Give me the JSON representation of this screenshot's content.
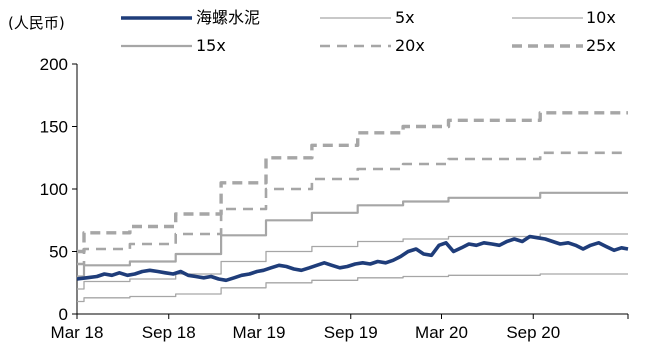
{
  "chart_data": {
    "type": "line",
    "unit_label": "(人民币)",
    "title": "",
    "xlabel": "",
    "ylabel": "",
    "ylim": [
      0,
      200
    ],
    "yticks": [
      0,
      50,
      100,
      150,
      200
    ],
    "x_range": [
      "2018-03-01",
      "2021-03-10"
    ],
    "xticks": [
      {
        "date": "2018-03-01",
        "label": "Mar 18"
      },
      {
        "date": "2018-09-01",
        "label": "Sep 18"
      },
      {
        "date": "2019-03-01",
        "label": "Mar 19"
      },
      {
        "date": "2019-09-01",
        "label": "Sep 19"
      },
      {
        "date": "2020-03-01",
        "label": "Mar 20"
      },
      {
        "date": "2020-09-01",
        "label": "Sep 20"
      }
    ],
    "grid": false,
    "legend_position": "top",
    "series": [
      {
        "name": "海螺水泥",
        "color": "#1f3d7a",
        "style": "solid-thick",
        "points": [
          [
            "2018-03-01",
            28
          ],
          [
            "2018-03-20",
            29
          ],
          [
            "2018-04-10",
            30
          ],
          [
            "2018-04-25",
            32
          ],
          [
            "2018-05-10",
            31
          ],
          [
            "2018-05-25",
            33
          ],
          [
            "2018-06-10",
            31
          ],
          [
            "2018-06-25",
            32
          ],
          [
            "2018-07-10",
            34
          ],
          [
            "2018-07-25",
            35
          ],
          [
            "2018-08-10",
            34
          ],
          [
            "2018-08-25",
            33
          ],
          [
            "2018-09-10",
            32
          ],
          [
            "2018-09-25",
            34
          ],
          [
            "2018-10-10",
            31
          ],
          [
            "2018-10-25",
            30
          ],
          [
            "2018-11-10",
            29
          ],
          [
            "2018-11-25",
            30
          ],
          [
            "2018-12-10",
            28
          ],
          [
            "2018-12-25",
            27
          ],
          [
            "2019-01-10",
            29
          ],
          [
            "2019-01-25",
            31
          ],
          [
            "2019-02-10",
            32
          ],
          [
            "2019-02-25",
            34
          ],
          [
            "2019-03-10",
            35
          ],
          [
            "2019-03-25",
            37
          ],
          [
            "2019-04-10",
            39
          ],
          [
            "2019-04-25",
            38
          ],
          [
            "2019-05-10",
            36
          ],
          [
            "2019-05-25",
            35
          ],
          [
            "2019-06-10",
            37
          ],
          [
            "2019-06-25",
            39
          ],
          [
            "2019-07-10",
            41
          ],
          [
            "2019-07-25",
            39
          ],
          [
            "2019-08-10",
            37
          ],
          [
            "2019-08-25",
            38
          ],
          [
            "2019-09-10",
            40
          ],
          [
            "2019-09-25",
            41
          ],
          [
            "2019-10-10",
            40
          ],
          [
            "2019-10-25",
            42
          ],
          [
            "2019-11-10",
            41
          ],
          [
            "2019-11-25",
            43
          ],
          [
            "2019-12-10",
            46
          ],
          [
            "2019-12-25",
            50
          ],
          [
            "2020-01-10",
            52
          ],
          [
            "2020-01-25",
            48
          ],
          [
            "2020-02-10",
            47
          ],
          [
            "2020-02-25",
            55
          ],
          [
            "2020-03-10",
            57
          ],
          [
            "2020-03-25",
            50
          ],
          [
            "2020-04-10",
            53
          ],
          [
            "2020-04-25",
            56
          ],
          [
            "2020-05-10",
            55
          ],
          [
            "2020-05-25",
            57
          ],
          [
            "2020-06-10",
            56
          ],
          [
            "2020-06-25",
            55
          ],
          [
            "2020-07-10",
            58
          ],
          [
            "2020-07-25",
            60
          ],
          [
            "2020-08-10",
            58
          ],
          [
            "2020-08-25",
            62
          ],
          [
            "2020-09-10",
            61
          ],
          [
            "2020-09-25",
            60
          ],
          [
            "2020-10-10",
            58
          ],
          [
            "2020-10-25",
            56
          ],
          [
            "2020-11-10",
            57
          ],
          [
            "2020-11-25",
            55
          ],
          [
            "2020-12-10",
            52
          ],
          [
            "2020-12-25",
            55
          ],
          [
            "2021-01-10",
            57
          ],
          [
            "2021-01-25",
            54
          ],
          [
            "2021-02-10",
            51
          ],
          [
            "2021-02-25",
            53
          ],
          [
            "2021-03-10",
            52
          ]
        ]
      },
      {
        "name": "5x",
        "color": "#a6a6a6",
        "style": "solid-thin",
        "points": [
          [
            "2018-03-01",
            10
          ],
          [
            "2018-03-15",
            13
          ],
          [
            "2018-06-15",
            14
          ],
          [
            "2018-09-15",
            16
          ],
          [
            "2018-12-15",
            21
          ],
          [
            "2019-03-15",
            25
          ],
          [
            "2019-06-15",
            27
          ],
          [
            "2019-09-15",
            29
          ],
          [
            "2019-12-15",
            30
          ],
          [
            "2020-03-15",
            31
          ],
          [
            "2020-06-15",
            31
          ],
          [
            "2020-09-15",
            32
          ],
          [
            "2021-03-10",
            32
          ]
        ]
      },
      {
        "name": "10x",
        "color": "#a6a6a6",
        "style": "solid-thin",
        "points": [
          [
            "2018-03-01",
            20
          ],
          [
            "2018-03-15",
            26
          ],
          [
            "2018-06-15",
            28
          ],
          [
            "2018-09-15",
            32
          ],
          [
            "2018-12-15",
            42
          ],
          [
            "2019-03-15",
            50
          ],
          [
            "2019-06-15",
            54
          ],
          [
            "2019-09-15",
            58
          ],
          [
            "2019-12-15",
            60
          ],
          [
            "2020-03-15",
            62
          ],
          [
            "2020-06-15",
            62
          ],
          [
            "2020-09-15",
            64
          ],
          [
            "2021-03-10",
            64
          ]
        ]
      },
      {
        "name": "15x",
        "color": "#a6a6a6",
        "style": "solid-medium",
        "points": [
          [
            "2018-03-01",
            30
          ],
          [
            "2018-03-15",
            39
          ],
          [
            "2018-06-15",
            42
          ],
          [
            "2018-09-15",
            48
          ],
          [
            "2018-12-15",
            63
          ],
          [
            "2019-03-15",
            75
          ],
          [
            "2019-06-15",
            81
          ],
          [
            "2019-09-15",
            87
          ],
          [
            "2019-12-15",
            90
          ],
          [
            "2020-03-15",
            93
          ],
          [
            "2020-06-15",
            93
          ],
          [
            "2020-09-15",
            97
          ],
          [
            "2021-03-10",
            97
          ]
        ]
      },
      {
        "name": "20x",
        "color": "#a6a6a6",
        "style": "dashed",
        "points": [
          [
            "2018-03-01",
            40
          ],
          [
            "2018-03-15",
            52
          ],
          [
            "2018-06-15",
            56
          ],
          [
            "2018-09-15",
            64
          ],
          [
            "2018-12-15",
            84
          ],
          [
            "2019-03-15",
            100
          ],
          [
            "2019-06-15",
            108
          ],
          [
            "2019-09-15",
            116
          ],
          [
            "2019-12-15",
            120
          ],
          [
            "2020-03-15",
            124
          ],
          [
            "2020-06-15",
            124
          ],
          [
            "2020-09-15",
            129
          ],
          [
            "2021-03-10",
            129
          ]
        ]
      },
      {
        "name": "25x",
        "color": "#a6a6a6",
        "style": "dashed-bold",
        "points": [
          [
            "2018-03-01",
            50
          ],
          [
            "2018-03-15",
            65
          ],
          [
            "2018-06-15",
            70
          ],
          [
            "2018-09-15",
            80
          ],
          [
            "2018-12-15",
            105
          ],
          [
            "2019-03-15",
            125
          ],
          [
            "2019-06-15",
            135
          ],
          [
            "2019-09-15",
            145
          ],
          [
            "2019-12-15",
            150
          ],
          [
            "2020-03-15",
            155
          ],
          [
            "2020-06-15",
            155
          ],
          [
            "2020-09-15",
            161
          ],
          [
            "2021-03-10",
            161
          ]
        ]
      }
    ]
  }
}
